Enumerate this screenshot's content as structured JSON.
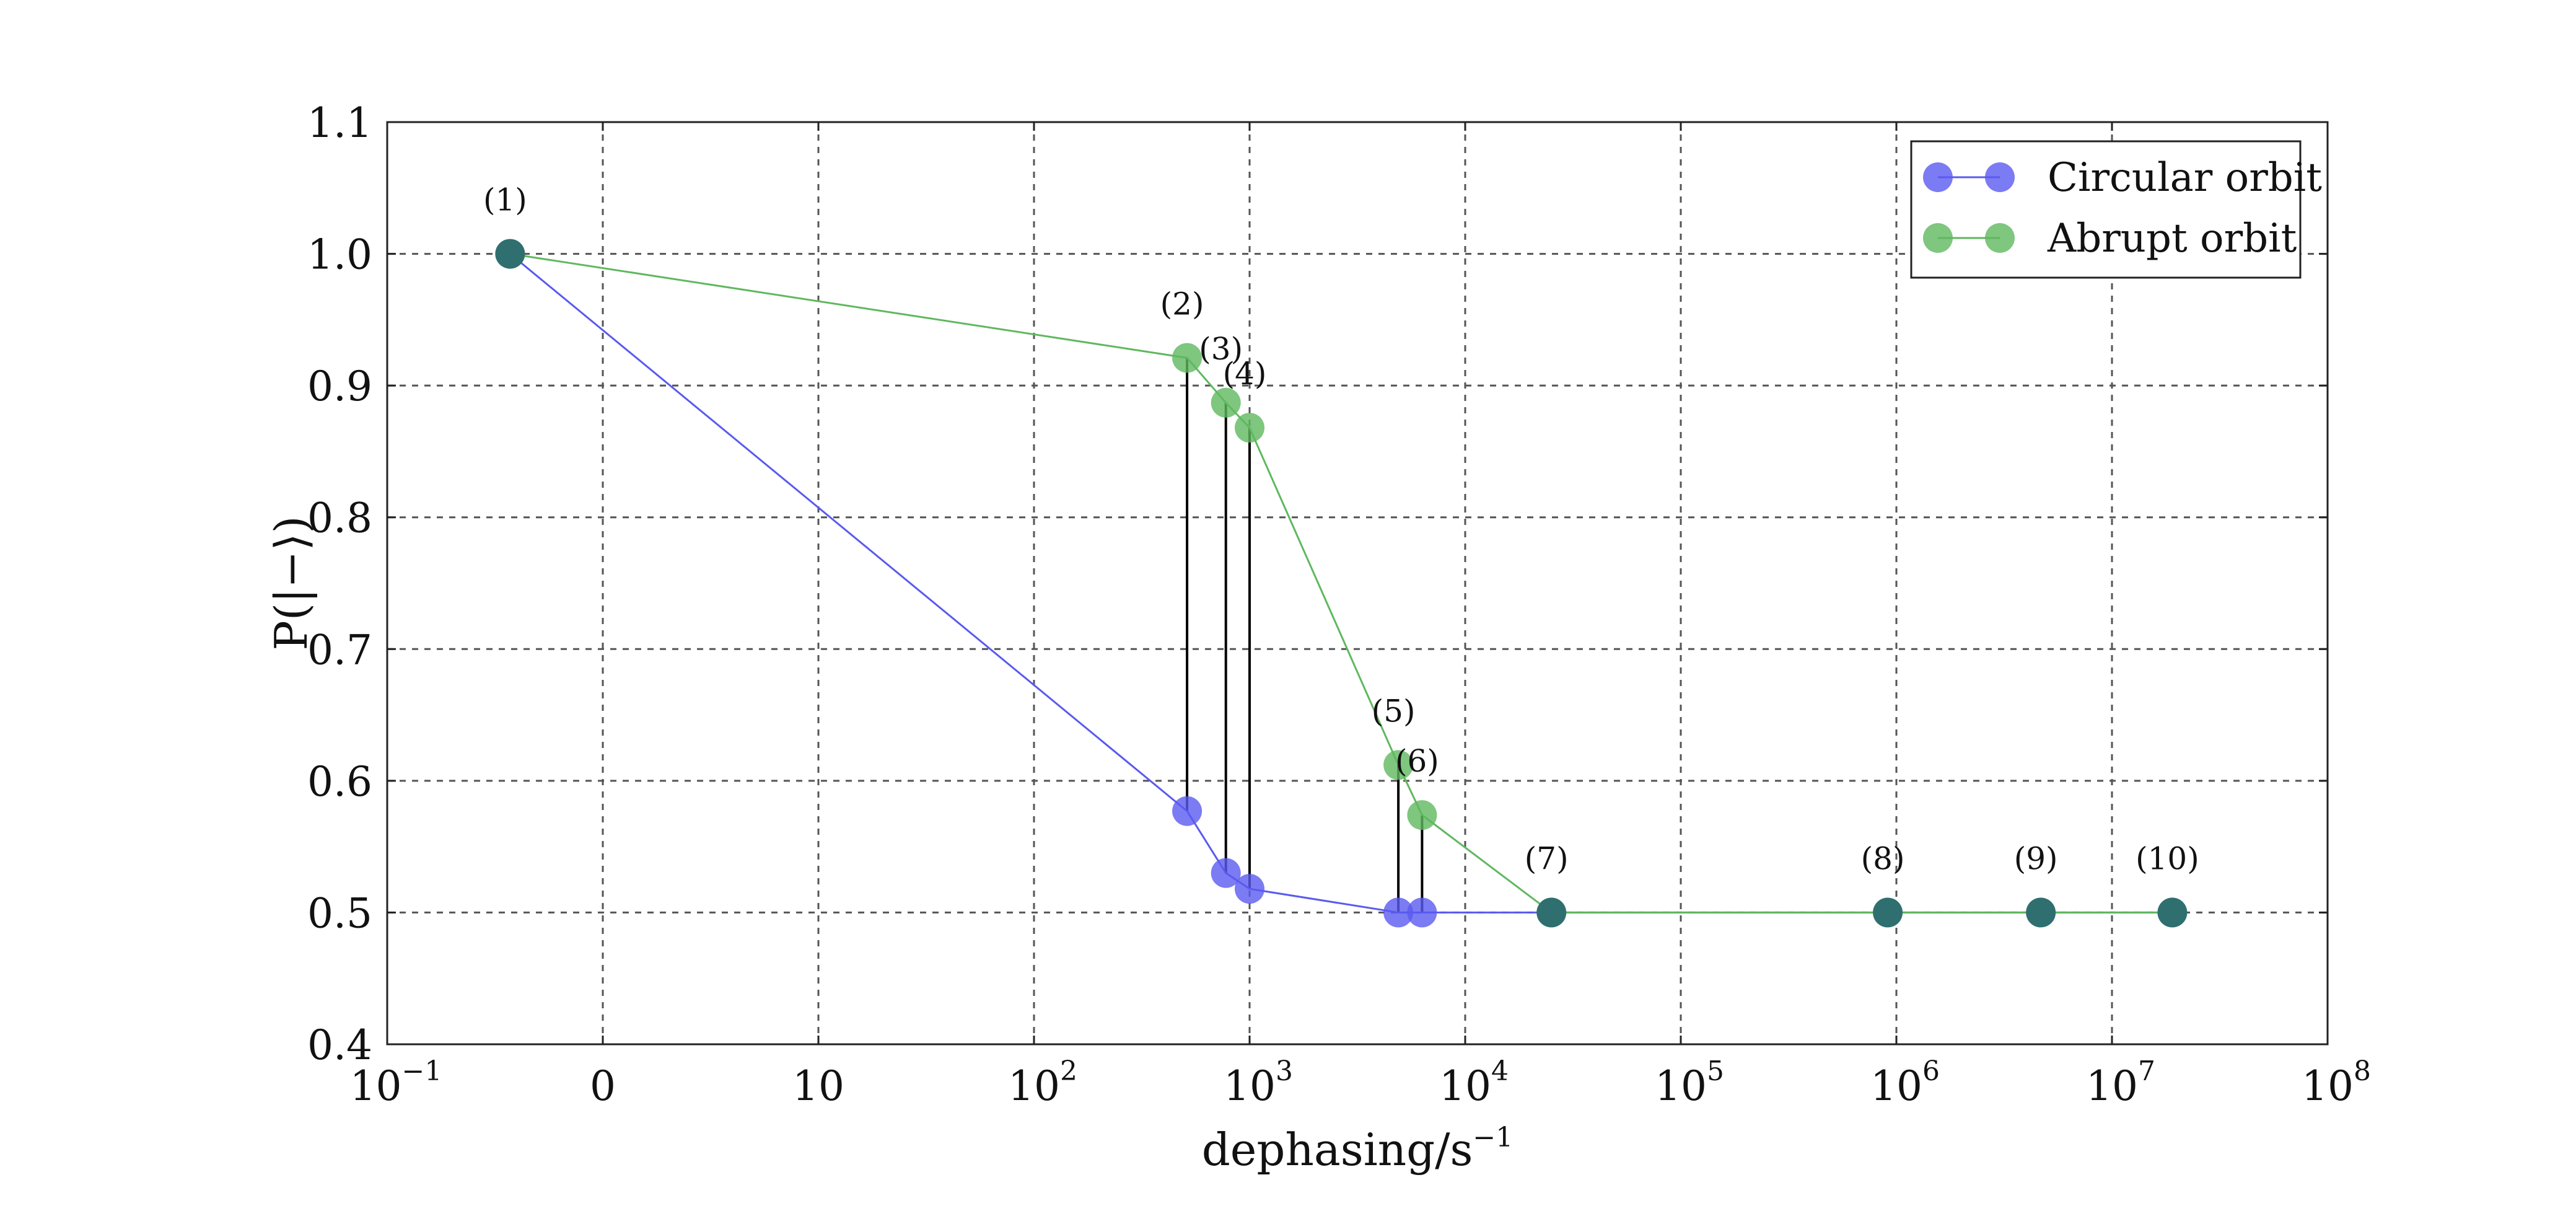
{
  "chart_data": {
    "type": "line",
    "xlabel": "dephasing/s",
    "xlabel_exponent": "−1",
    "ylabel": "P(|−⟩)",
    "x_scale": "log-like (decade ticks)",
    "xlim": [
      0.1,
      100000000
    ],
    "ylim": [
      0.4,
      1.1
    ],
    "grid": true,
    "legend_position": "top-right",
    "x_ticks": [
      {
        "base": "10",
        "exp": "−1"
      },
      {
        "base": "0",
        "exp": ""
      },
      {
        "base": "10",
        "exp": ""
      },
      {
        "base": "10",
        "exp": "2"
      },
      {
        "base": "10",
        "exp": "3"
      },
      {
        "base": "10",
        "exp": "4"
      },
      {
        "base": "10",
        "exp": "5"
      },
      {
        "base": "10",
        "exp": "6"
      },
      {
        "base": "10",
        "exp": "7"
      },
      {
        "base": "10",
        "exp": "8"
      }
    ],
    "y_ticks": [
      "0.4",
      "0.5",
      "0.6",
      "0.7",
      "0.8",
      "0.9",
      "1.0",
      "1.1"
    ],
    "point_labels": [
      "(1)",
      "(2)",
      "(3)",
      "(4)",
      "(5)",
      "(6)",
      "(7)",
      "(8)",
      "(9)",
      "(10)"
    ],
    "x_positions_decades": [
      -0.43,
      2.71,
      2.89,
      3.0,
      3.69,
      3.8,
      4.4,
      5.96,
      6.67,
      7.28
    ],
    "series": [
      {
        "name": "Circular orbit",
        "color": "#5a5af0",
        "y": [
          1.0,
          0.577,
          0.53,
          0.518,
          0.5,
          0.5,
          0.5,
          0.5,
          0.5,
          0.5
        ]
      },
      {
        "name": "Abrupt orbit",
        "color": "#5fb85f",
        "y": [
          1.0,
          0.921,
          0.887,
          0.868,
          0.612,
          0.574,
          0.5,
          0.5,
          0.5,
          0.5
        ]
      }
    ],
    "vertical_connectors_at_points": [
      2,
      3,
      4,
      5,
      6
    ],
    "overlap_color": "#2f6f6f"
  }
}
